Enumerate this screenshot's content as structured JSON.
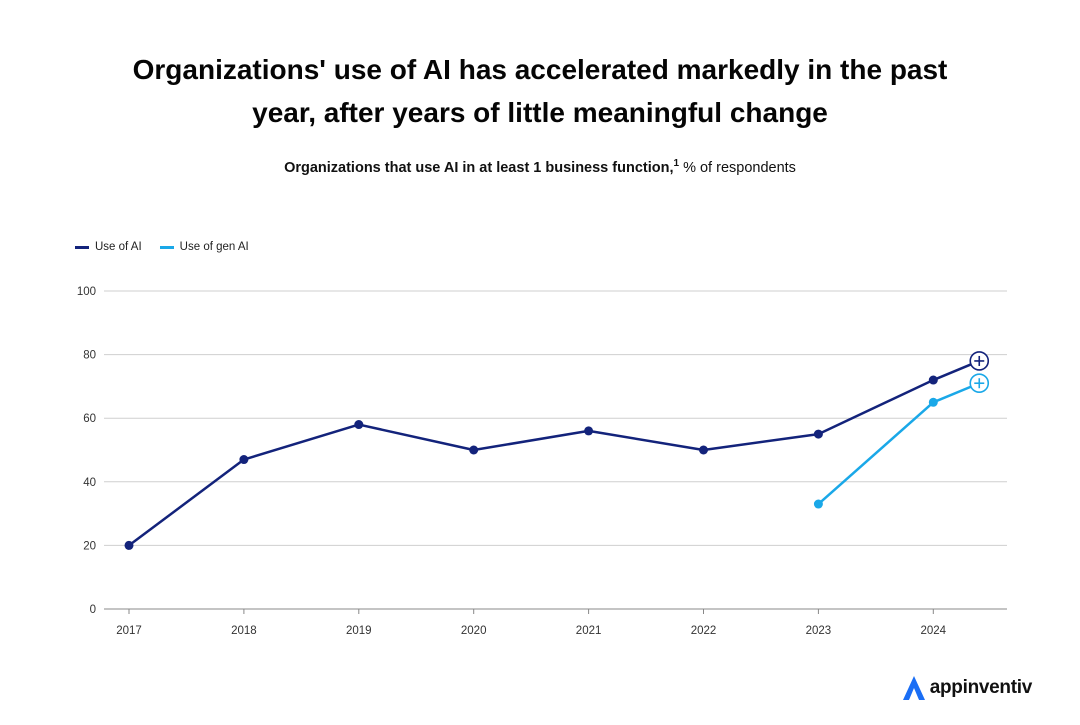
{
  "title_line1": "Organizations' use of AI has accelerated markedly in the past",
  "title_line2": "year, after years of little meaningful change",
  "subtitle_bold": "Organizations that use AI in at least 1 business function,",
  "subtitle_sup": "1",
  "subtitle_rest": " % of respondents",
  "brand": "appinventiv",
  "colors": {
    "ai": "#13237b",
    "genai": "#1aa8e8",
    "grid": "#cfcfcf"
  },
  "chart_data": {
    "type": "line",
    "ylim": [
      0,
      100
    ],
    "yticks": [
      0,
      20,
      40,
      60,
      80,
      100
    ],
    "xticks": [
      "2017",
      "2018",
      "2019",
      "2020",
      "2021",
      "2022",
      "2023",
      "2024"
    ],
    "grid": true,
    "legend_position": "top-left",
    "series": [
      {
        "name": "Use of AI",
        "x": [
          2017,
          2018,
          2019,
          2020,
          2021,
          2022,
          2023,
          2024,
          2024.4
        ],
        "values": [
          20,
          47,
          58,
          50,
          56,
          50,
          55,
          72,
          78
        ],
        "end_marker": "plus-circle"
      },
      {
        "name": "Use of gen AI",
        "x": [
          2023,
          2024,
          2024.4
        ],
        "values": [
          33,
          65,
          71
        ],
        "end_marker": "plus-circle"
      }
    ]
  }
}
